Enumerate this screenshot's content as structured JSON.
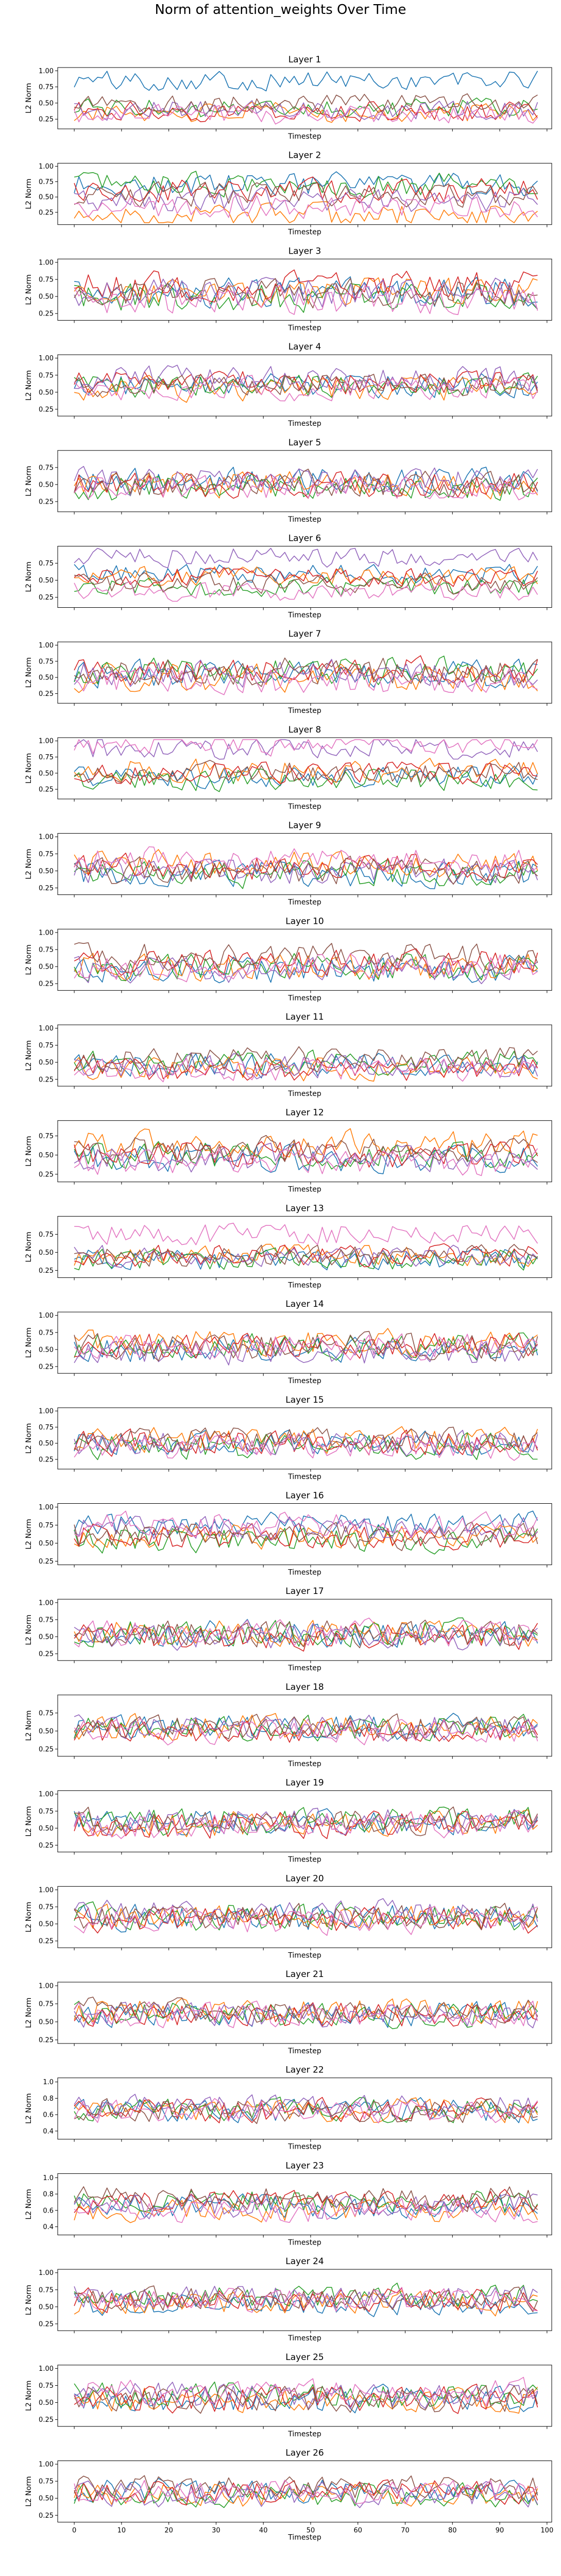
{
  "figure": {
    "title": "Norm of attention_weights Over Time"
  },
  "colors": [
    "#1f77b4",
    "#ff7f0e",
    "#2ca02c",
    "#d62728",
    "#9467bd",
    "#8c564b",
    "#e377c2"
  ],
  "chart_data": {
    "type": "line",
    "xlabel": "Timestep",
    "ylabel": "L2 Norm",
    "xlim": [
      -3.5,
      101
    ],
    "x_ticks": [
      0,
      10,
      20,
      30,
      40,
      50,
      60,
      70,
      80,
      90,
      100
    ],
    "x_ticks_visible_on": "bottom-panel-only",
    "n_timesteps": 100,
    "n_series_per_panel": 7,
    "panels": [
      {
        "title": "Layer 1",
        "ylim": [
          0.1,
          1.05
        ],
        "yticks": [
          0.25,
          0.5,
          0.75,
          1.0
        ],
        "ytick_labels": [
          "0.25",
          "0.50",
          "0.75",
          "1.00"
        ],
        "seed": 101,
        "mean": [
          0.85,
          0.35,
          0.42,
          0.38,
          0.4,
          0.5,
          0.32
        ],
        "amp": 0.16
      },
      {
        "title": "Layer 2",
        "ylim": [
          0.05,
          1.05
        ],
        "yticks": [
          0.25,
          0.5,
          0.75,
          1.0
        ],
        "ytick_labels": [
          "0.25",
          "0.50",
          "0.75",
          "1.00"
        ],
        "seed": 202,
        "mean": [
          0.7,
          0.2,
          0.7,
          0.6,
          0.45,
          0.55,
          0.35
        ],
        "amp": 0.2
      },
      {
        "title": "Layer 3",
        "ylim": [
          0.15,
          1.05
        ],
        "yticks": [
          0.25,
          0.5,
          0.75,
          1.0
        ],
        "ytick_labels": [
          "0.25",
          "0.50",
          "0.75",
          "1.00"
        ],
        "seed": 303,
        "mean": [
          0.55,
          0.55,
          0.5,
          0.65,
          0.55,
          0.55,
          0.45
        ],
        "amp": 0.22
      },
      {
        "title": "Layer 4",
        "ylim": [
          0.15,
          1.05
        ],
        "yticks": [
          0.25,
          0.5,
          0.75,
          1.0
        ],
        "ytick_labels": [
          "0.25",
          "0.50",
          "0.75",
          "1.00"
        ],
        "seed": 404,
        "mean": [
          0.6,
          0.55,
          0.6,
          0.65,
          0.7,
          0.6,
          0.55
        ],
        "amp": 0.18
      },
      {
        "title": "Layer 5",
        "ylim": [
          0.1,
          1.0
        ],
        "yticks": [
          0.25,
          0.5,
          0.75
        ],
        "ytick_labels": [
          "0.25",
          "0.50",
          "0.75"
        ],
        "seed": 505,
        "mean": [
          0.55,
          0.5,
          0.45,
          0.5,
          0.55,
          0.5,
          0.45
        ],
        "amp": 0.2
      },
      {
        "title": "Layer 6",
        "ylim": [
          0.1,
          1.0
        ],
        "yticks": [
          0.25,
          0.5,
          0.75
        ],
        "ytick_labels": [
          "0.25",
          "0.50",
          "0.75"
        ],
        "seed": 606,
        "mean": [
          0.6,
          0.55,
          0.4,
          0.55,
          0.85,
          0.45,
          0.35
        ],
        "amp": 0.15
      },
      {
        "title": "Layer 7",
        "ylim": [
          0.1,
          1.05
        ],
        "yticks": [
          0.25,
          0.5,
          0.75,
          1.0
        ],
        "ytick_labels": [
          "0.25",
          "0.50",
          "0.75",
          "1.00"
        ],
        "seed": 707,
        "mean": [
          0.55,
          0.5,
          0.6,
          0.6,
          0.55,
          0.6,
          0.45
        ],
        "amp": 0.22
      },
      {
        "title": "Layer 8",
        "ylim": [
          0.1,
          1.05
        ],
        "yticks": [
          0.25,
          0.5,
          0.75,
          1.0
        ],
        "ytick_labels": [
          "0.25",
          "0.50",
          "0.75",
          "1.00"
        ],
        "seed": 808,
        "mean": [
          0.45,
          0.55,
          0.4,
          0.5,
          0.9,
          0.5,
          0.95
        ],
        "amp": 0.18
      },
      {
        "title": "Layer 9",
        "ylim": [
          0.15,
          1.05
        ],
        "yticks": [
          0.25,
          0.5,
          0.75,
          1.0
        ],
        "ytick_labels": [
          "0.25",
          "0.50",
          "0.75",
          "1.00"
        ],
        "seed": 909,
        "mean": [
          0.45,
          0.6,
          0.45,
          0.55,
          0.5,
          0.5,
          0.65
        ],
        "amp": 0.2
      },
      {
        "title": "Layer 10",
        "ylim": [
          0.15,
          1.05
        ],
        "yticks": [
          0.25,
          0.5,
          0.75,
          1.0
        ],
        "ytick_labels": [
          "0.25",
          "0.50",
          "0.75",
          "1.00"
        ],
        "seed": 1010,
        "mean": [
          0.45,
          0.5,
          0.5,
          0.55,
          0.45,
          0.65,
          0.5
        ],
        "amp": 0.2
      },
      {
        "title": "Layer 11",
        "ylim": [
          0.15,
          1.05
        ],
        "yticks": [
          0.25,
          0.5,
          0.75,
          1.0
        ],
        "ytick_labels": [
          "0.25",
          "0.50",
          "0.75",
          "1.00"
        ],
        "seed": 1111,
        "mean": [
          0.45,
          0.4,
          0.5,
          0.4,
          0.45,
          0.55,
          0.4
        ],
        "amp": 0.18
      },
      {
        "title": "Layer 12",
        "ylim": [
          0.15,
          0.95
        ],
        "yticks": [
          0.25,
          0.5,
          0.75
        ],
        "ytick_labels": [
          "0.25",
          "0.50",
          "0.75"
        ],
        "seed": 1212,
        "mean": [
          0.45,
          0.65,
          0.5,
          0.5,
          0.45,
          0.55,
          0.4
        ],
        "amp": 0.18
      },
      {
        "title": "Layer 13",
        "ylim": [
          0.15,
          1.0
        ],
        "yticks": [
          0.25,
          0.5,
          0.75
        ],
        "ytick_labels": [
          "0.25",
          "0.50",
          "0.75"
        ],
        "seed": 1313,
        "mean": [
          0.4,
          0.45,
          0.4,
          0.45,
          0.45,
          0.45,
          0.75
        ],
        "amp": 0.15
      },
      {
        "title": "Layer 14",
        "ylim": [
          0.15,
          1.05
        ],
        "yticks": [
          0.25,
          0.5,
          0.75,
          1.0
        ],
        "ytick_labels": [
          "0.25",
          "0.50",
          "0.75",
          "1.00"
        ],
        "seed": 1414,
        "mean": [
          0.5,
          0.6,
          0.55,
          0.55,
          0.45,
          0.55,
          0.55
        ],
        "amp": 0.2
      },
      {
        "title": "Layer 15",
        "ylim": [
          0.1,
          1.05
        ],
        "yticks": [
          0.25,
          0.5,
          0.75,
          1.0
        ],
        "ytick_labels": [
          "0.25",
          "0.50",
          "0.75",
          "1.00"
        ],
        "seed": 1515,
        "mean": [
          0.5,
          0.55,
          0.45,
          0.5,
          0.5,
          0.55,
          0.45
        ],
        "amp": 0.2
      },
      {
        "title": "Layer 16",
        "ylim": [
          0.2,
          1.05
        ],
        "yticks": [
          0.25,
          0.5,
          0.75,
          1.0
        ],
        "ytick_labels": [
          "0.25",
          "0.50",
          "0.75",
          "1.00"
        ],
        "seed": 1616,
        "mean": [
          0.75,
          0.6,
          0.55,
          0.6,
          0.7,
          0.6,
          0.75
        ],
        "amp": 0.18
      },
      {
        "title": "Layer 17",
        "ylim": [
          0.15,
          1.05
        ],
        "yticks": [
          0.25,
          0.5,
          0.75,
          1.0
        ],
        "ytick_labels": [
          "0.25",
          "0.50",
          "0.75",
          "1.00"
        ],
        "seed": 1717,
        "mean": [
          0.55,
          0.55,
          0.55,
          0.5,
          0.5,
          0.55,
          0.55
        ],
        "amp": 0.2
      },
      {
        "title": "Layer 18",
        "ylim": [
          0.15,
          1.0
        ],
        "yticks": [
          0.25,
          0.5,
          0.75
        ],
        "ytick_labels": [
          "0.25",
          "0.50",
          "0.75"
        ],
        "seed": 1818,
        "mean": [
          0.55,
          0.55,
          0.55,
          0.5,
          0.55,
          0.55,
          0.5
        ],
        "amp": 0.18
      },
      {
        "title": "Layer 19",
        "ylim": [
          0.15,
          1.05
        ],
        "yticks": [
          0.25,
          0.5,
          0.75,
          1.0
        ],
        "ytick_labels": [
          "0.25",
          "0.50",
          "0.75",
          "1.00"
        ],
        "seed": 1919,
        "mean": [
          0.6,
          0.55,
          0.6,
          0.55,
          0.6,
          0.6,
          0.55
        ],
        "amp": 0.2
      },
      {
        "title": "Layer 20",
        "ylim": [
          0.15,
          1.05
        ],
        "yticks": [
          0.25,
          0.5,
          0.75,
          1.0
        ],
        "ytick_labels": [
          "0.25",
          "0.50",
          "0.75",
          "1.00"
        ],
        "seed": 2020,
        "mean": [
          0.6,
          0.6,
          0.6,
          0.55,
          0.65,
          0.6,
          0.55
        ],
        "amp": 0.2
      },
      {
        "title": "Layer 21",
        "ylim": [
          0.2,
          1.05
        ],
        "yticks": [
          0.25,
          0.5,
          0.75,
          1.0
        ],
        "ytick_labels": [
          "0.25",
          "0.50",
          "0.75",
          "1.00"
        ],
        "seed": 2121,
        "mean": [
          0.6,
          0.65,
          0.6,
          0.6,
          0.6,
          0.65,
          0.6
        ],
        "amp": 0.18
      },
      {
        "title": "Layer 22",
        "ylim": [
          0.3,
          1.05
        ],
        "yticks": [
          0.4,
          0.6,
          0.8,
          1.0
        ],
        "ytick_labels": [
          "0.4",
          "0.6",
          "0.8",
          "1.0"
        ],
        "seed": 2222,
        "mean": [
          0.65,
          0.65,
          0.65,
          0.65,
          0.7,
          0.65,
          0.65
        ],
        "amp": 0.15
      },
      {
        "title": "Layer 23",
        "ylim": [
          0.3,
          1.05
        ],
        "yticks": [
          0.4,
          0.6,
          0.8,
          1.0
        ],
        "ytick_labels": [
          "0.4",
          "0.6",
          "0.8",
          "1.0"
        ],
        "seed": 2323,
        "mean": [
          0.65,
          0.6,
          0.7,
          0.7,
          0.65,
          0.75,
          0.6
        ],
        "amp": 0.15
      },
      {
        "title": "Layer 24",
        "ylim": [
          0.15,
          1.05
        ],
        "yticks": [
          0.25,
          0.5,
          0.75,
          1.0
        ],
        "ytick_labels": [
          "0.25",
          "0.50",
          "0.75",
          "1.00"
        ],
        "seed": 2424,
        "mean": [
          0.55,
          0.55,
          0.65,
          0.6,
          0.65,
          0.6,
          0.6
        ],
        "amp": 0.18
      },
      {
        "title": "Layer 25",
        "ylim": [
          0.15,
          1.05
        ],
        "yticks": [
          0.25,
          0.5,
          0.75,
          1.0
        ],
        "ytick_labels": [
          "0.25",
          "0.50",
          "0.75",
          "1.00"
        ],
        "seed": 2525,
        "mean": [
          0.55,
          0.55,
          0.6,
          0.55,
          0.6,
          0.55,
          0.65
        ],
        "amp": 0.2
      },
      {
        "title": "Layer 26",
        "ylim": [
          0.15,
          1.05
        ],
        "yticks": [
          0.25,
          0.5,
          0.75,
          1.0
        ],
        "ytick_labels": [
          "0.25",
          "0.50",
          "0.75",
          "1.00"
        ],
        "seed": 2626,
        "mean": [
          0.6,
          0.55,
          0.55,
          0.6,
          0.55,
          0.65,
          0.6
        ],
        "amp": 0.18
      }
    ]
  }
}
